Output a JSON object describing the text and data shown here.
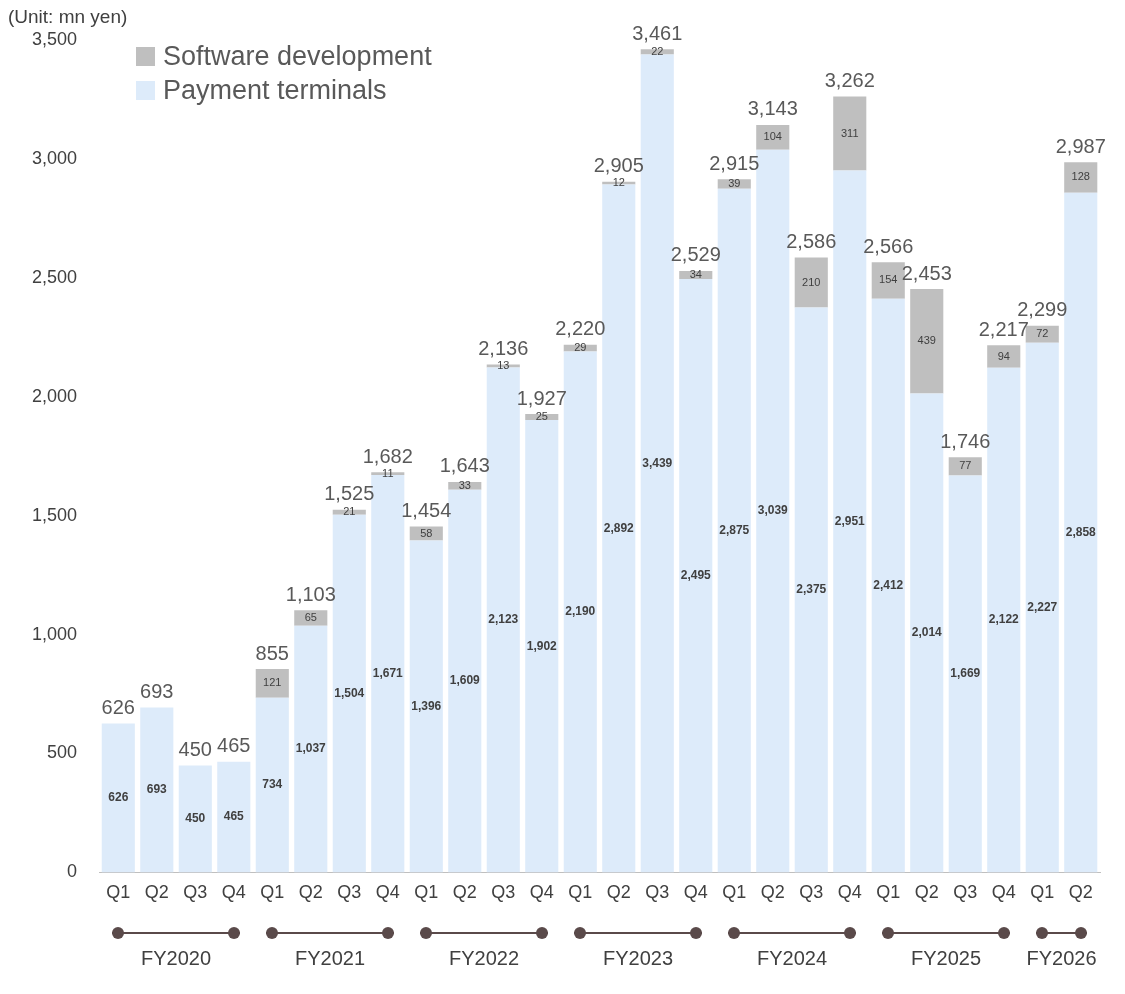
{
  "chart_data": {
    "type": "bar",
    "stacked": true,
    "ylabel": "(Unit: mn yen)",
    "categories": [
      "Q1",
      "Q2",
      "Q3",
      "Q4",
      "Q1",
      "Q2",
      "Q3",
      "Q4",
      "Q1",
      "Q2",
      "Q3",
      "Q4",
      "Q1",
      "Q2",
      "Q3",
      "Q4",
      "Q1",
      "Q2",
      "Q3",
      "Q4",
      "Q1",
      "Q2",
      "Q3",
      "Q4",
      "Q1",
      "Q2"
    ],
    "annotations": [
      "FY2020",
      "FY2021",
      "FY2022",
      "FY2023",
      "FY2024",
      "FY2025",
      "FY2026"
    ],
    "series": [
      {
        "name": "Payment terminals",
        "color": "#ddebfa",
        "values": [
          626,
          693,
          450,
          465,
          734,
          1037,
          1504,
          1671,
          1396,
          1609,
          2123,
          1902,
          2190,
          2892,
          3439,
          2495,
          2875,
          3039,
          2375,
          2951,
          2412,
          2014,
          1669,
          2122,
          2227,
          2858
        ],
        "value_labels": [
          "626",
          "693",
          "450",
          "465",
          "734",
          "1,037",
          "1,504",
          "1,671",
          "1,396",
          "1,609",
          "2,123",
          "1,902",
          "2,190",
          "2,892",
          "3,439",
          "2,495",
          "2,875",
          "3,039",
          "2,375",
          "2,951",
          "2,412",
          "2,014",
          "1,669",
          "2,122",
          "2,227",
          "2,858"
        ]
      },
      {
        "name": "Software development",
        "color": "#bfbfbf",
        "values": [
          null,
          null,
          null,
          null,
          121,
          65,
          21,
          11,
          58,
          33,
          13,
          25,
          29,
          12,
          22,
          34,
          39,
          104,
          210,
          311,
          154,
          439,
          77,
          94,
          72,
          128
        ],
        "value_labels": [
          null,
          null,
          null,
          null,
          "121",
          "65",
          "21",
          "11",
          "58",
          "33",
          "13",
          "25",
          "29",
          "12",
          "22",
          "34",
          "39",
          "104",
          "210",
          "311",
          "154",
          "439",
          "77",
          "94",
          "72",
          "128"
        ]
      }
    ],
    "totals": [
      "626",
      "693",
      "450",
      "465",
      "855",
      "1,103",
      "1,525",
      "1,682",
      "1,454",
      "1,643",
      "2,136",
      "1,927",
      "2,220",
      "2,905",
      "3,461",
      "2,529",
      "2,915",
      "3,143",
      "2,586",
      "3,262",
      "2,566",
      "2,453",
      "1,746",
      "2,217",
      "2,299",
      "2,987"
    ],
    "ylim": [
      0,
      3500
    ],
    "yticks": [
      0,
      {
        "value": 500,
        "label": "500"
      },
      {
        "value": 1000,
        "label": "1,000"
      },
      {
        "value": 1500,
        "label": "1,500"
      },
      {
        "value": 2000,
        "label": "2,000"
      },
      {
        "value": 2500,
        "label": "2,500"
      },
      {
        "value": 3000,
        "label": "3,000"
      },
      {
        "value": 3500,
        "label": "3,500"
      }
    ],
    "grid": false,
    "legend": "top left"
  }
}
